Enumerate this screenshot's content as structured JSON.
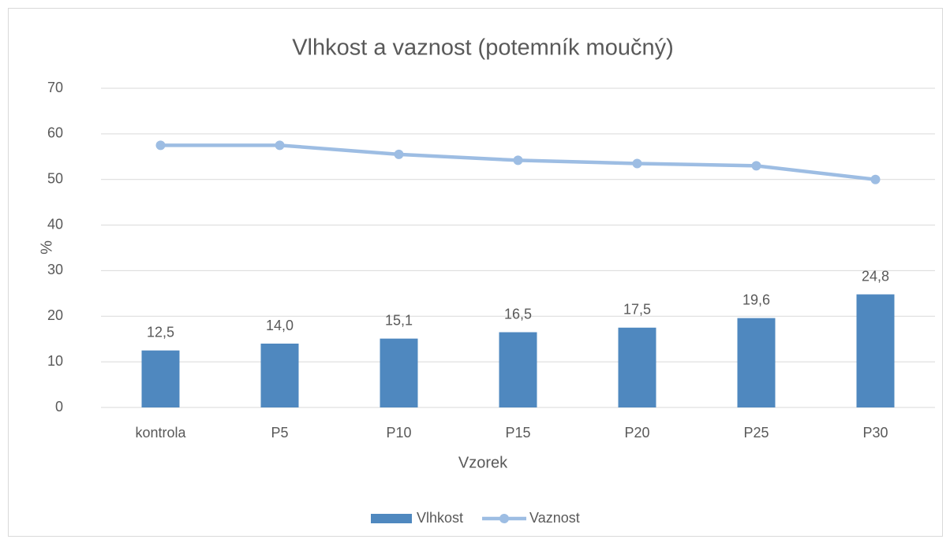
{
  "chart_data": {
    "type": "bar",
    "title": "Vlhkost a vaznost (potemník moučný)",
    "x_label": "Vzorek",
    "y_label": "%",
    "categories": [
      "kontrola",
      "P5",
      "P10",
      "P15",
      "P20",
      "P25",
      "P30"
    ],
    "series": [
      {
        "name": "Vlhkost",
        "type": "bar",
        "color": "#4f88bf",
        "values": [
          12.5,
          14.0,
          15.1,
          16.5,
          17.5,
          19.6,
          24.8
        ],
        "value_labels": [
          "12,5",
          "14,0",
          "15,1",
          "16,5",
          "17,5",
          "19,6",
          "24,8"
        ]
      },
      {
        "name": "Vaznost",
        "type": "line",
        "color": "#9dbde3",
        "values": [
          57.5,
          57.5,
          55.5,
          54.2,
          53.5,
          53.0,
          50.0
        ]
      }
    ],
    "ylim": [
      0,
      70
    ],
    "yticks": [
      0,
      10,
      20,
      30,
      40,
      50,
      60,
      70
    ],
    "grid": true,
    "legend": "bottom"
  }
}
